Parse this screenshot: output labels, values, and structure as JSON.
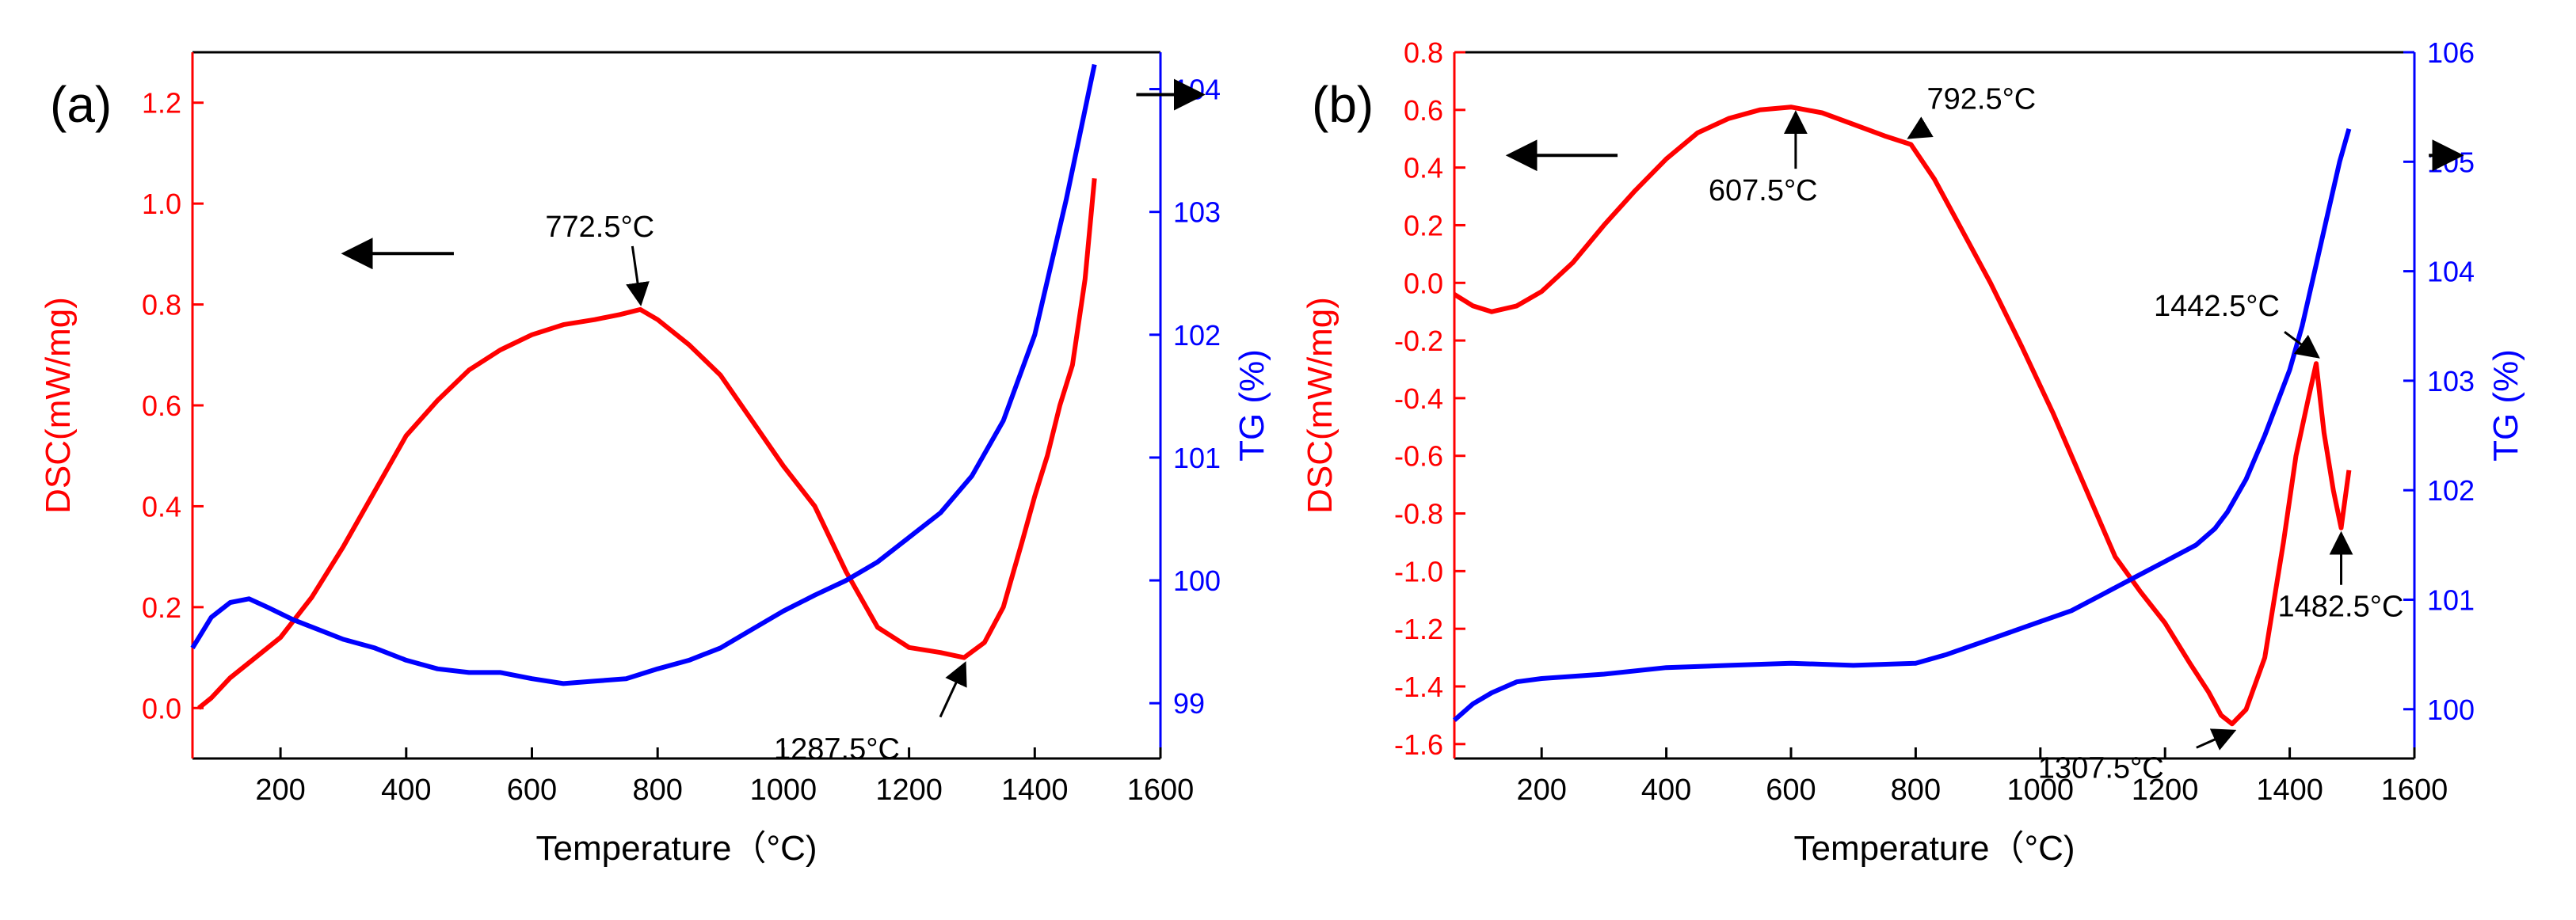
{
  "chart_data": [
    {
      "type": "line",
      "panel_label": "(a)",
      "xlabel": "Temperature（°C)",
      "xlim": [
        60,
        1600
      ],
      "xticks": [
        200,
        400,
        600,
        800,
        1000,
        1200,
        1400,
        1600
      ],
      "y_left": {
        "label": "DSC(mW/mg)",
        "color": "#ff0000",
        "lim": [
          -0.1,
          1.3
        ],
        "ticks": [
          0.0,
          0.2,
          0.4,
          0.6,
          0.8,
          1.0,
          1.2
        ]
      },
      "y_right": {
        "label": "TG (%)",
        "color": "#0000ff",
        "lim": [
          98.55,
          104.3
        ],
        "ticks": [
          99,
          100,
          101,
          102,
          103,
          104
        ]
      },
      "series": [
        {
          "name": "DSC",
          "axis": "left",
          "color": "#ff0000",
          "x": [
            70,
            90,
            120,
            160,
            200,
            250,
            300,
            350,
            400,
            450,
            500,
            550,
            600,
            650,
            700,
            740,
            772.5,
            800,
            850,
            900,
            950,
            1000,
            1050,
            1100,
            1150,
            1200,
            1250,
            1287.5,
            1320,
            1350,
            1380,
            1400,
            1410,
            1420,
            1440,
            1460,
            1480,
            1495
          ],
          "y": [
            0.0,
            0.02,
            0.06,
            0.1,
            0.14,
            0.22,
            0.32,
            0.43,
            0.54,
            0.61,
            0.67,
            0.71,
            0.74,
            0.76,
            0.77,
            0.78,
            0.79,
            0.77,
            0.72,
            0.66,
            0.57,
            0.48,
            0.4,
            0.27,
            0.16,
            0.12,
            0.11,
            0.1,
            0.13,
            0.2,
            0.33,
            0.42,
            0.46,
            0.5,
            0.6,
            0.68,
            0.85,
            1.05
          ]
        },
        {
          "name": "TG",
          "axis": "right",
          "color": "#0000ff",
          "x": [
            60,
            90,
            120,
            150,
            180,
            220,
            260,
            300,
            350,
            400,
            450,
            500,
            550,
            600,
            650,
            700,
            750,
            800,
            850,
            900,
            950,
            1000,
            1050,
            1100,
            1150,
            1200,
            1250,
            1300,
            1350,
            1400,
            1450,
            1495
          ],
          "y": [
            99.45,
            99.7,
            99.82,
            99.85,
            99.78,
            99.68,
            99.6,
            99.52,
            99.45,
            99.35,
            99.28,
            99.25,
            99.25,
            99.2,
            99.16,
            99.18,
            99.2,
            99.28,
            99.35,
            99.45,
            99.6,
            99.75,
            99.88,
            100.0,
            100.15,
            100.35,
            100.55,
            100.85,
            101.3,
            102.0,
            103.1,
            104.2
          ]
        }
      ],
      "annotations": [
        {
          "text": "772.5°C",
          "x": 772.5,
          "y": 0.79,
          "axis": "left"
        },
        {
          "text": "1287.5°C",
          "x": 1287.5,
          "y": 0.1,
          "axis": "left"
        }
      ],
      "arrows": [
        {
          "direction": "left",
          "meaning": "DSC uses left axis"
        },
        {
          "direction": "right",
          "meaning": "TG uses right axis"
        }
      ]
    },
    {
      "type": "line",
      "panel_label": "(b)",
      "xlabel": "Temperature（°C)",
      "xlim": [
        60,
        1600
      ],
      "xticks": [
        200,
        400,
        600,
        800,
        1000,
        1200,
        1400,
        1600
      ],
      "y_left": {
        "label": "DSC(mW/mg)",
        "color": "#ff0000",
        "lim": [
          -1.65,
          0.8
        ],
        "ticks": [
          -1.6,
          -1.4,
          -1.2,
          -1.0,
          -0.8,
          -0.6,
          -0.4,
          -0.2,
          0.0,
          0.2,
          0.4,
          0.6,
          0.8
        ]
      },
      "y_right": {
        "label": "TG (%)",
        "color": "#0000ff",
        "lim": [
          99.55,
          106.0
        ],
        "ticks": [
          100,
          101,
          102,
          103,
          104,
          105,
          106
        ]
      },
      "series": [
        {
          "name": "DSC",
          "axis": "left",
          "color": "#ff0000",
          "x": [
            60,
            90,
            120,
            160,
            200,
            250,
            300,
            350,
            400,
            450,
            500,
            550,
            600,
            650,
            700,
            750,
            792.5,
            830,
            870,
            920,
            970,
            1020,
            1070,
            1120,
            1160,
            1200,
            1240,
            1270,
            1290,
            1307.5,
            1330,
            1360,
            1390,
            1410,
            1430,
            1442.5,
            1455,
            1470,
            1482.5,
            1495
          ],
          "y": [
            -0.04,
            -0.08,
            -0.1,
            -0.08,
            -0.03,
            0.07,
            0.2,
            0.32,
            0.43,
            0.52,
            0.57,
            0.6,
            0.61,
            0.59,
            0.55,
            0.51,
            0.48,
            0.36,
            0.2,
            0.0,
            -0.22,
            -0.45,
            -0.7,
            -0.95,
            -1.07,
            -1.18,
            -1.32,
            -1.42,
            -1.5,
            -1.53,
            -1.48,
            -1.3,
            -0.9,
            -0.6,
            -0.4,
            -0.28,
            -0.52,
            -0.72,
            -0.85,
            -0.65
          ]
        },
        {
          "name": "TG",
          "axis": "right",
          "color": "#0000ff",
          "x": [
            60,
            90,
            120,
            160,
            200,
            250,
            300,
            400,
            500,
            600,
            700,
            800,
            850,
            900,
            950,
            1000,
            1050,
            1100,
            1150,
            1200,
            1250,
            1280,
            1300,
            1330,
            1360,
            1380,
            1400,
            1420,
            1440,
            1460,
            1480,
            1495
          ],
          "y": [
            99.9,
            100.05,
            100.15,
            100.25,
            100.28,
            100.3,
            100.32,
            100.38,
            100.4,
            100.42,
            100.4,
            100.42,
            100.5,
            100.6,
            100.7,
            100.8,
            100.9,
            101.05,
            101.2,
            101.35,
            101.5,
            101.65,
            101.8,
            102.1,
            102.5,
            102.8,
            103.1,
            103.5,
            104.0,
            104.5,
            105.0,
            105.3
          ]
        }
      ],
      "annotations": [
        {
          "text": "607.5°C",
          "x": 607.5,
          "y": 0.61,
          "axis": "left"
        },
        {
          "text": "792.5°C",
          "x": 792.5,
          "y": 0.48,
          "axis": "left"
        },
        {
          "text": "1442.5°C",
          "x": 1442.5,
          "y": -0.28,
          "axis": "left"
        },
        {
          "text": "1482.5°C",
          "x": 1482.5,
          "y": -0.85,
          "axis": "left"
        },
        {
          "text": "1307.5°C",
          "x": 1307.5,
          "y": -1.53,
          "axis": "left"
        }
      ],
      "arrows": [
        {
          "direction": "left",
          "meaning": "DSC uses left axis"
        },
        {
          "direction": "right",
          "meaning": "TG uses right axis"
        }
      ]
    }
  ]
}
